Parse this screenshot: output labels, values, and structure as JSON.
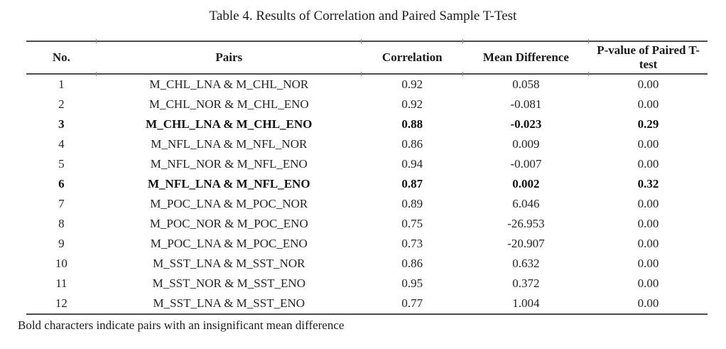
{
  "caption": "Table 4. Results of Correlation and Paired Sample T-Test",
  "table": {
    "columns": [
      "No.",
      "Pairs",
      "Correlation",
      "Mean Difference",
      "P-value of Paired T-test"
    ],
    "rows": [
      {
        "no": "1",
        "pairs": "M_CHL_LNA & M_CHL_NOR",
        "correlation": "0.92",
        "mean_difference": "0.058",
        "p_value": "0.00",
        "bold": false
      },
      {
        "no": "2",
        "pairs": "M_CHL_NOR & M_CHL_ENO",
        "correlation": "0.92",
        "mean_difference": "-0.081",
        "p_value": "0.00",
        "bold": false
      },
      {
        "no": "3",
        "pairs": "M_CHL_LNA & M_CHL_ENO",
        "correlation": "0.88",
        "mean_difference": "-0.023",
        "p_value": "0.29",
        "bold": true
      },
      {
        "no": "4",
        "pairs": "M_NFL_LNA & M_NFL_NOR",
        "correlation": "0.86",
        "mean_difference": "0.009",
        "p_value": "0.00",
        "bold": false
      },
      {
        "no": "5",
        "pairs": "M_NFL_NOR & M_NFL_ENO",
        "correlation": "0.94",
        "mean_difference": "-0.007",
        "p_value": "0.00",
        "bold": false
      },
      {
        "no": "6",
        "pairs": "M_NFL_LNA & M_NFL_ENO",
        "correlation": "0.87",
        "mean_difference": "0.002",
        "p_value": "0.32",
        "bold": true
      },
      {
        "no": "7",
        "pairs": "M_POC_LNA & M_POC_NOR",
        "correlation": "0.89",
        "mean_difference": "6.046",
        "p_value": "0.00",
        "bold": false
      },
      {
        "no": "8",
        "pairs": "M_POC_NOR & M_POC_ENO",
        "correlation": "0.75",
        "mean_difference": "-26.953",
        "p_value": "0.00",
        "bold": false
      },
      {
        "no": "9",
        "pairs": "M_POC_LNA & M_POC_ENO",
        "correlation": "0.73",
        "mean_difference": "-20.907",
        "p_value": "0.00",
        "bold": false
      },
      {
        "no": "10",
        "pairs": "M_SST_LNA & M_SST_NOR",
        "correlation": "0.86",
        "mean_difference": "0.632",
        "p_value": "0.00",
        "bold": false
      },
      {
        "no": "11",
        "pairs": "M_SST_NOR & M_SST_ENO",
        "correlation": "0.95",
        "mean_difference": "0.372",
        "p_value": "0.00",
        "bold": false
      },
      {
        "no": "12",
        "pairs": "M_SST_LNA & M_SST_ENO",
        "correlation": "0.77",
        "mean_difference": "1.004",
        "p_value": "0.00",
        "bold": false
      }
    ]
  },
  "footnote": "Bold characters indicate pairs with an insignificant mean difference",
  "colors": {
    "text": "#1f1f1f",
    "rule": "#4d4d4d",
    "background": "#ffffff"
  }
}
